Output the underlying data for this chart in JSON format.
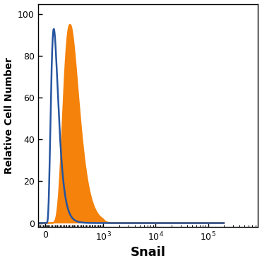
{
  "title": "",
  "xlabel": "Snail",
  "ylabel": "Relative Cell Number",
  "xlabel_fontsize": 13,
  "ylabel_fontsize": 10,
  "ylim": [
    -2,
    105
  ],
  "yticks": [
    0,
    20,
    40,
    60,
    80,
    100
  ],
  "blue_color": "#2655a0",
  "orange_color": "#f5820a",
  "blue_peak_x": 180,
  "blue_peak_y": 93,
  "blue_sigma": 0.42,
  "orange_peak_x": 470,
  "orange_peak_y": 95,
  "orange_sigma": 0.3,
  "background_color": "#ffffff",
  "tick_label_fontsize": 9,
  "line_width": 1.8,
  "linthresh": 1000,
  "linscale": 1.0,
  "xlim_min": -120,
  "xlim_max": 200000
}
